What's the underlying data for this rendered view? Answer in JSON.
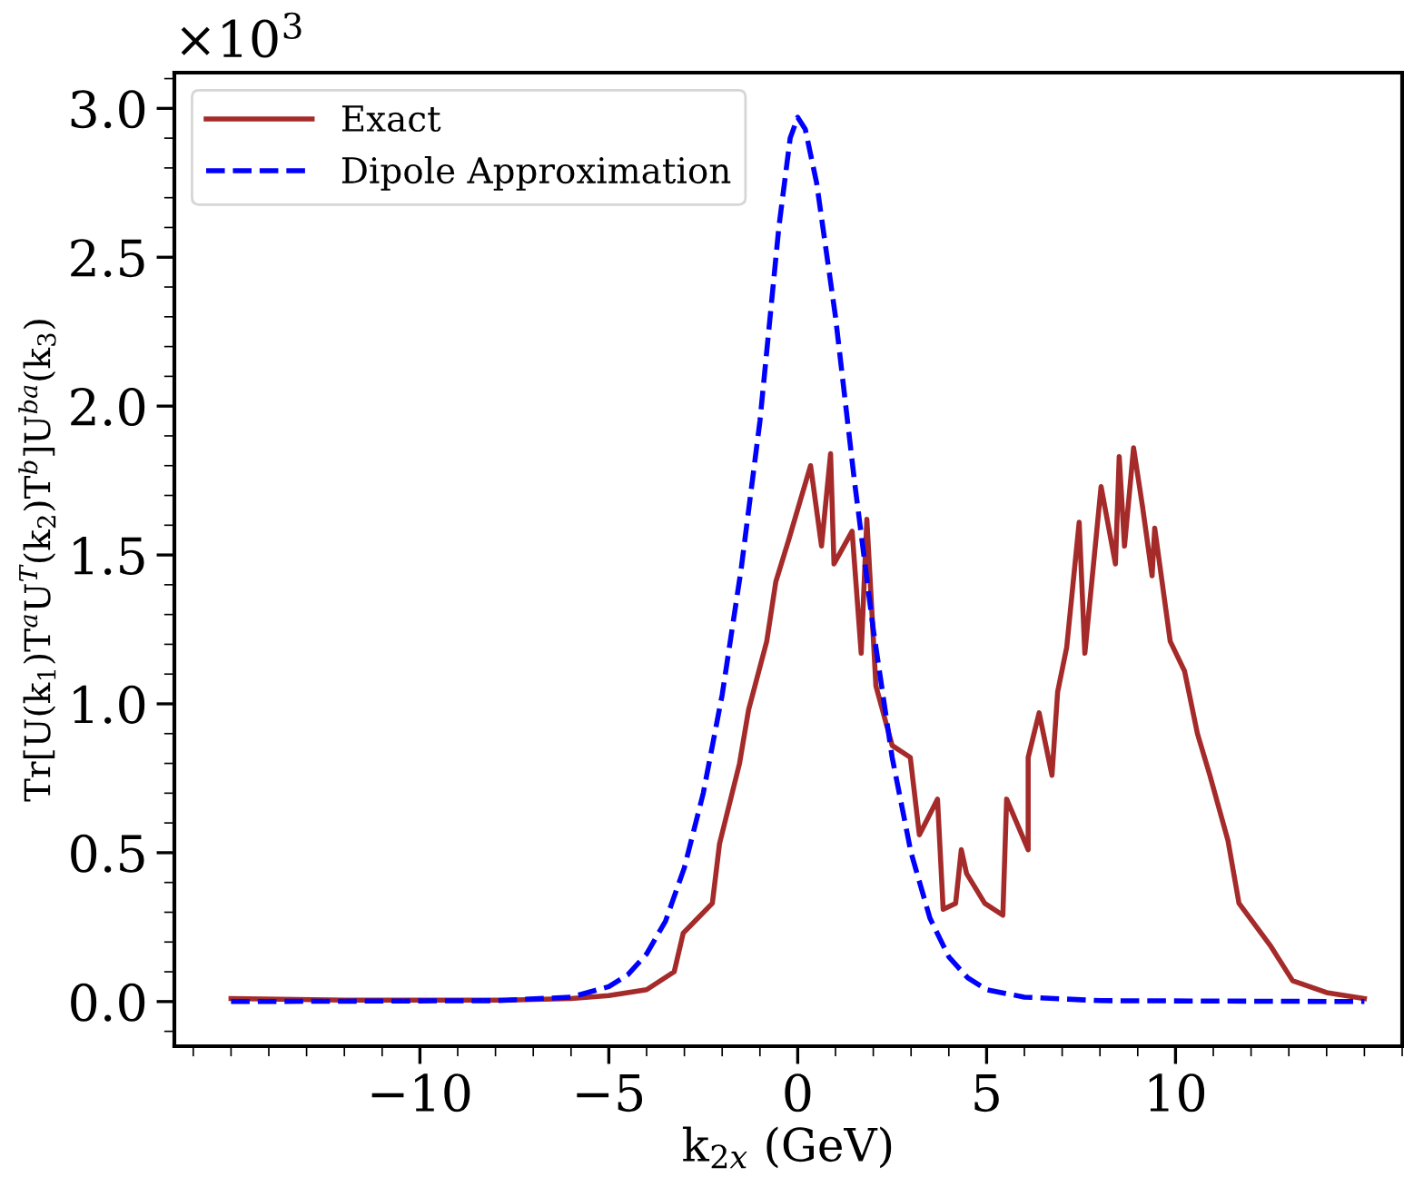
{
  "chart_data": {
    "type": "line",
    "xlabel": "k$_{2x}$ (GeV)",
    "ylabel": "Tr[U(k$_{1}$)T$^{a}$U$^{T}$(k$_{2}$)T$^{b}$]U$^{ba}$(k$_{3}$)",
    "annotations": [
      "×10$^{3}$"
    ],
    "xlim": [
      -16.5,
      16.0
    ],
    "ylim": [
      -0.15,
      3.12
    ],
    "xticks": [
      -10,
      -5,
      0,
      5,
      10
    ],
    "yticks": [
      {
        "value": 0,
        "label": "0.0"
      },
      0.5,
      {
        "value": 1,
        "label": "1.0"
      },
      1.5,
      {
        "value": 2,
        "label": "2.0"
      },
      2.5,
      {
        "value": 3,
        "label": "3.0"
      }
    ],
    "grid": false,
    "legend": "top left",
    "series": [
      {
        "name": "Exact",
        "color": "#a52a2a",
        "line_style": "solid",
        "x": [
          -15,
          -12,
          -10,
          -7.7,
          -6,
          -5,
          -4.0,
          -3.27,
          -3.03,
          -2.26,
          -2.07,
          -1.54,
          -1.3,
          -0.82,
          -0.58,
          -0.24,
          0.34,
          0.63,
          0.87,
          0.96,
          1.44,
          1.68,
          1.83,
          2.07,
          2.5,
          2.98,
          3.22,
          3.7,
          3.85,
          4.18,
          4.33,
          4.47,
          4.95,
          5.43,
          5.53,
          6.1,
          6.1,
          6.39,
          6.73,
          6.88,
          7.12,
          7.45,
          7.6,
          8.03,
          8.41,
          8.51,
          8.65,
          8.89,
          9.13,
          9.38,
          9.45,
          9.86,
          10.24,
          10.58,
          10.91,
          11.39,
          11.68,
          12.5,
          13.1,
          14,
          15
        ],
        "values": [
          0.01,
          0.005,
          0.005,
          0.005,
          0.01,
          0.02,
          0.04,
          0.1,
          0.23,
          0.33,
          0.53,
          0.8,
          0.98,
          1.21,
          1.41,
          1.55,
          1.8,
          1.53,
          1.84,
          1.47,
          1.58,
          1.17,
          1.62,
          1.06,
          0.86,
          0.82,
          0.56,
          0.68,
          0.31,
          0.33,
          0.51,
          0.43,
          0.33,
          0.29,
          0.68,
          0.51,
          0.82,
          0.97,
          0.76,
          1.04,
          1.19,
          1.61,
          1.17,
          1.73,
          1.47,
          1.83,
          1.53,
          1.86,
          1.66,
          1.43,
          1.59,
          1.21,
          1.11,
          0.9,
          0.76,
          0.54,
          0.33,
          0.19,
          0.07,
          0.03,
          0.01
        ]
      },
      {
        "name": "Dipole Approximation",
        "color": "#0000ff",
        "line_style": "dashed",
        "x": [
          -15,
          -8,
          -6,
          -5,
          -4.5,
          -4,
          -3.5,
          -3,
          -2.5,
          -2,
          -1.5,
          -1,
          -0.5,
          -0.2,
          0,
          0.2,
          0.5,
          1,
          1.5,
          2,
          2.5,
          3,
          3.5,
          4,
          4.5,
          5,
          6,
          8,
          15
        ],
        "values": [
          0,
          0.003,
          0.015,
          0.05,
          0.09,
          0.16,
          0.27,
          0.45,
          0.7,
          1.03,
          1.45,
          1.95,
          2.6,
          2.9,
          2.97,
          2.93,
          2.75,
          2.3,
          1.75,
          1.25,
          0.82,
          0.5,
          0.28,
          0.15,
          0.08,
          0.04,
          0.015,
          0.003,
          0
        ]
      }
    ]
  }
}
